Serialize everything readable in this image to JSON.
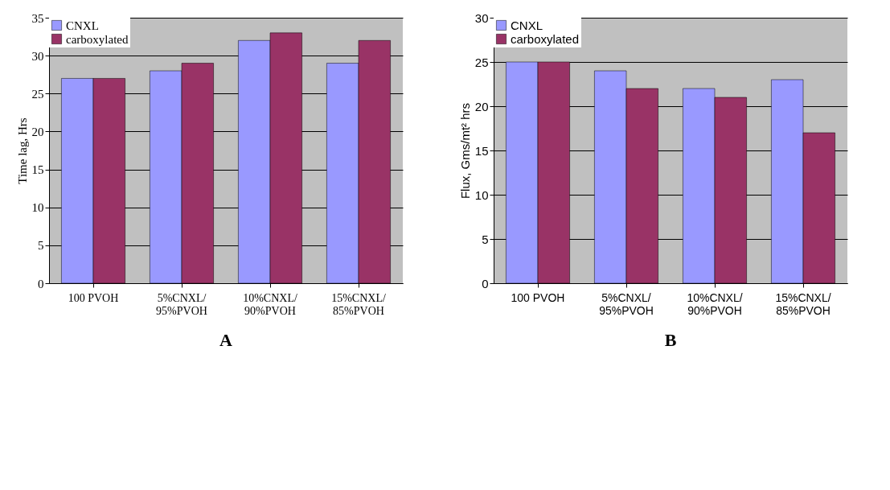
{
  "chart_data": [
    {
      "type": "bar",
      "title": "A",
      "ylabel": "Time lag, Hrs",
      "categories": [
        "100 PVOH",
        "5%CNXL/\n95%PVOH",
        "10%CNXL/\n90%PVOH",
        "15%CNXL/\n85%PVOH"
      ],
      "series": [
        {
          "name": "CNXL",
          "color": "#9999ff",
          "values": [
            27,
            28,
            32,
            29
          ]
        },
        {
          "name": "carboxylated",
          "color": "#993366",
          "values": [
            27,
            29,
            33,
            32
          ]
        }
      ],
      "ylim": [
        0,
        35
      ],
      "yticks": [
        0,
        5,
        10,
        15,
        20,
        25,
        30,
        35
      ],
      "grid": "y",
      "legend": "top left"
    },
    {
      "type": "bar",
      "title": "B",
      "ylabel": "Flux, Gms/mt² hrs",
      "categories": [
        "100 PVOH",
        "5%CNXL/\n95%PVOH",
        "10%CNXL/\n90%PVOH",
        "15%CNXL/\n85%PVOH"
      ],
      "series": [
        {
          "name": "CNXL",
          "color": "#9999ff",
          "values": [
            25,
            24,
            22,
            23
          ]
        },
        {
          "name": "carboxylated",
          "color": "#993366",
          "values": [
            25,
            22,
            21,
            17
          ]
        }
      ],
      "ylim": [
        0,
        30
      ],
      "yticks": [
        0,
        5,
        10,
        15,
        20,
        25,
        30
      ],
      "grid": "y",
      "legend": "top left"
    }
  ]
}
